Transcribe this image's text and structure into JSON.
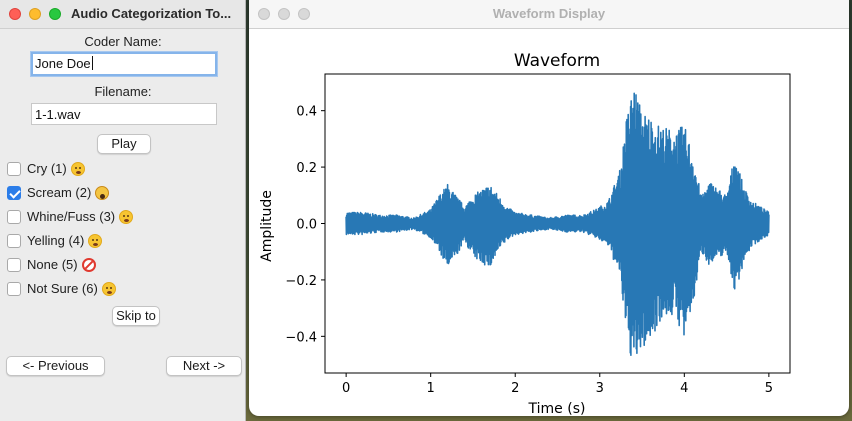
{
  "left_window": {
    "title": "Audio Categorization To...",
    "coder_label": "Coder Name:",
    "coder_value": "Jone Doe",
    "filename_label": "Filename:",
    "filename_value": "1-1.wav",
    "play_label": "Play",
    "categories": [
      {
        "label": "Cry (1)",
        "checked": false,
        "icon": "crying-face-icon"
      },
      {
        "label": "Scream (2)",
        "checked": true,
        "icon": "screaming-face-icon"
      },
      {
        "label": "Whine/Fuss (3)",
        "checked": false,
        "icon": "weary-face-icon"
      },
      {
        "label": "Yelling (4)",
        "checked": false,
        "icon": "open-mouth-face-icon"
      },
      {
        "label": "None (5)",
        "checked": false,
        "icon": "no-entry-icon"
      },
      {
        "label": "Not Sure (6)",
        "checked": false,
        "icon": "thinking-face-icon"
      }
    ],
    "skip_label": "Skip to",
    "previous_label": "<- Previous",
    "next_label": "Next ->"
  },
  "right_window": {
    "title": "Waveform Display"
  },
  "chart_data": {
    "type": "line",
    "title": "Waveform",
    "xlabel": "Time (s)",
    "ylabel": "Amplitude",
    "xlim": [
      -0.25,
      5.25
    ],
    "ylim": [
      -0.53,
      0.53
    ],
    "xticks": [
      0,
      1,
      2,
      3,
      4,
      5
    ],
    "yticks": [
      -0.4,
      -0.2,
      0.0,
      0.2,
      0.4
    ],
    "ytick_labels": [
      "−0.4",
      "−0.2",
      "0.0",
      "0.2",
      "0.4"
    ],
    "grid": false,
    "color": "#2878b5",
    "series": [
      {
        "envelope_time": [
          0,
          0.2,
          0.4,
          0.6,
          0.8,
          1.0,
          1.1,
          1.2,
          1.3,
          1.4,
          1.5,
          1.6,
          1.7,
          1.8,
          1.9,
          2.0,
          2.2,
          2.4,
          2.6,
          2.8,
          2.95,
          3.1,
          3.25,
          3.3,
          3.4,
          3.5,
          3.6,
          3.7,
          3.8,
          3.9,
          4.0,
          4.1,
          4.2,
          4.3,
          4.5,
          4.6,
          4.7,
          4.8,
          4.9,
          5.0
        ],
        "envelope_upper": [
          0.04,
          0.04,
          0.03,
          0.03,
          0.02,
          0.05,
          0.1,
          0.14,
          0.1,
          0.06,
          0.1,
          0.12,
          0.14,
          0.1,
          0.06,
          0.04,
          0.03,
          0.02,
          0.03,
          0.03,
          0.05,
          0.08,
          0.2,
          0.35,
          0.5,
          0.4,
          0.38,
          0.35,
          0.34,
          0.33,
          0.35,
          0.25,
          0.1,
          0.15,
          0.1,
          0.25,
          0.13,
          0.08,
          0.06,
          0.04
        ],
        "envelope_lower": [
          -0.04,
          -0.04,
          -0.03,
          -0.03,
          -0.02,
          -0.05,
          -0.1,
          -0.16,
          -0.12,
          -0.06,
          -0.12,
          -0.14,
          -0.16,
          -0.1,
          -0.06,
          -0.04,
          -0.03,
          -0.02,
          -0.03,
          -0.03,
          -0.05,
          -0.08,
          -0.2,
          -0.38,
          -0.52,
          -0.45,
          -0.42,
          -0.35,
          -0.33,
          -0.33,
          -0.42,
          -0.3,
          -0.1,
          -0.15,
          -0.1,
          -0.25,
          -0.14,
          -0.08,
          -0.06,
          -0.04
        ]
      }
    ]
  }
}
